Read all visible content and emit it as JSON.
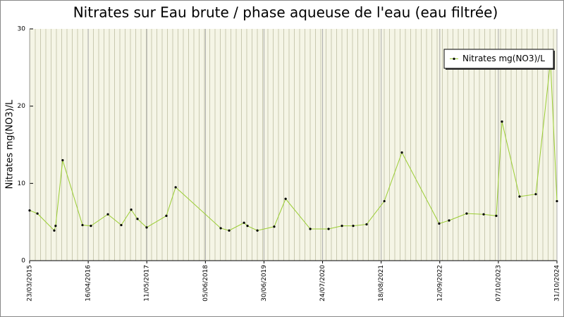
{
  "chart_data": {
    "type": "line",
    "title": "Nitrates sur Eau brute / phase aqueuse de l'eau (eau filtrée)",
    "y_label": "Nitrates mg(NO3)/L",
    "x": [
      "2015-03-23",
      "2015-05-14",
      "2015-09-03",
      "2015-09-12",
      "2015-10-29",
      "2016-03-09",
      "2016-05-04",
      "2016-08-25",
      "2016-11-22",
      "2017-01-27",
      "2017-03-10",
      "2017-05-10",
      "2017-09-18",
      "2017-11-19",
      "2018-09-15",
      "2018-11-10",
      "2019-02-17",
      "2019-03-12",
      "2019-05-17",
      "2019-09-06",
      "2019-11-21",
      "2020-05-03",
      "2020-09-02",
      "2020-11-30",
      "2021-02-13",
      "2021-05-13",
      "2021-09-08",
      "2022-01-03",
      "2022-09-08",
      "2022-11-13",
      "2023-03-10",
      "2023-07-01",
      "2023-09-23",
      "2023-10-31",
      "2024-02-25",
      "2024-06-12",
      "2024-09-18",
      "2024-10-31"
    ],
    "series": [
      {
        "name": "Nitrates mg(NO3)/L",
        "color": "#9acd32",
        "values": [
          6.5,
          6.1,
          3.9,
          4.5,
          13.0,
          4.6,
          4.5,
          6.0,
          4.6,
          6.6,
          5.4,
          4.3,
          5.8,
          9.5,
          4.2,
          3.9,
          4.9,
          4.5,
          3.9,
          4.4,
          8.0,
          4.1,
          4.1,
          4.5,
          4.5,
          4.7,
          7.7,
          14.0,
          4.8,
          5.2,
          6.1,
          6.0,
          5.8,
          18.0,
          8.3,
          8.6,
          25.8,
          7.7
        ]
      }
    ],
    "xlim": [
      "2015-03-23",
      "2024-10-31"
    ],
    "xticks": [
      {
        "value": "2015-03-23",
        "label": "23/03/2015"
      },
      {
        "value": "2016-04-16",
        "label": "16/04/2016"
      },
      {
        "value": "2017-05-11",
        "label": "11/05/2017"
      },
      {
        "value": "2018-06-05",
        "label": "05/06/2018"
      },
      {
        "value": "2019-06-30",
        "label": "30/06/2019"
      },
      {
        "value": "2020-07-24",
        "label": "24/07/2020"
      },
      {
        "value": "2021-08-18",
        "label": "18/08/2021"
      },
      {
        "value": "2022-09-12",
        "label": "12/09/2022"
      },
      {
        "value": "2023-10-07",
        "label": "07/10/2023"
      },
      {
        "value": "2024-10-31",
        "label": "31/10/2024"
      }
    ],
    "ylim": [
      0,
      30
    ],
    "yticks": [
      0,
      10,
      20,
      30
    ],
    "grid": true,
    "legend": "top-right"
  }
}
